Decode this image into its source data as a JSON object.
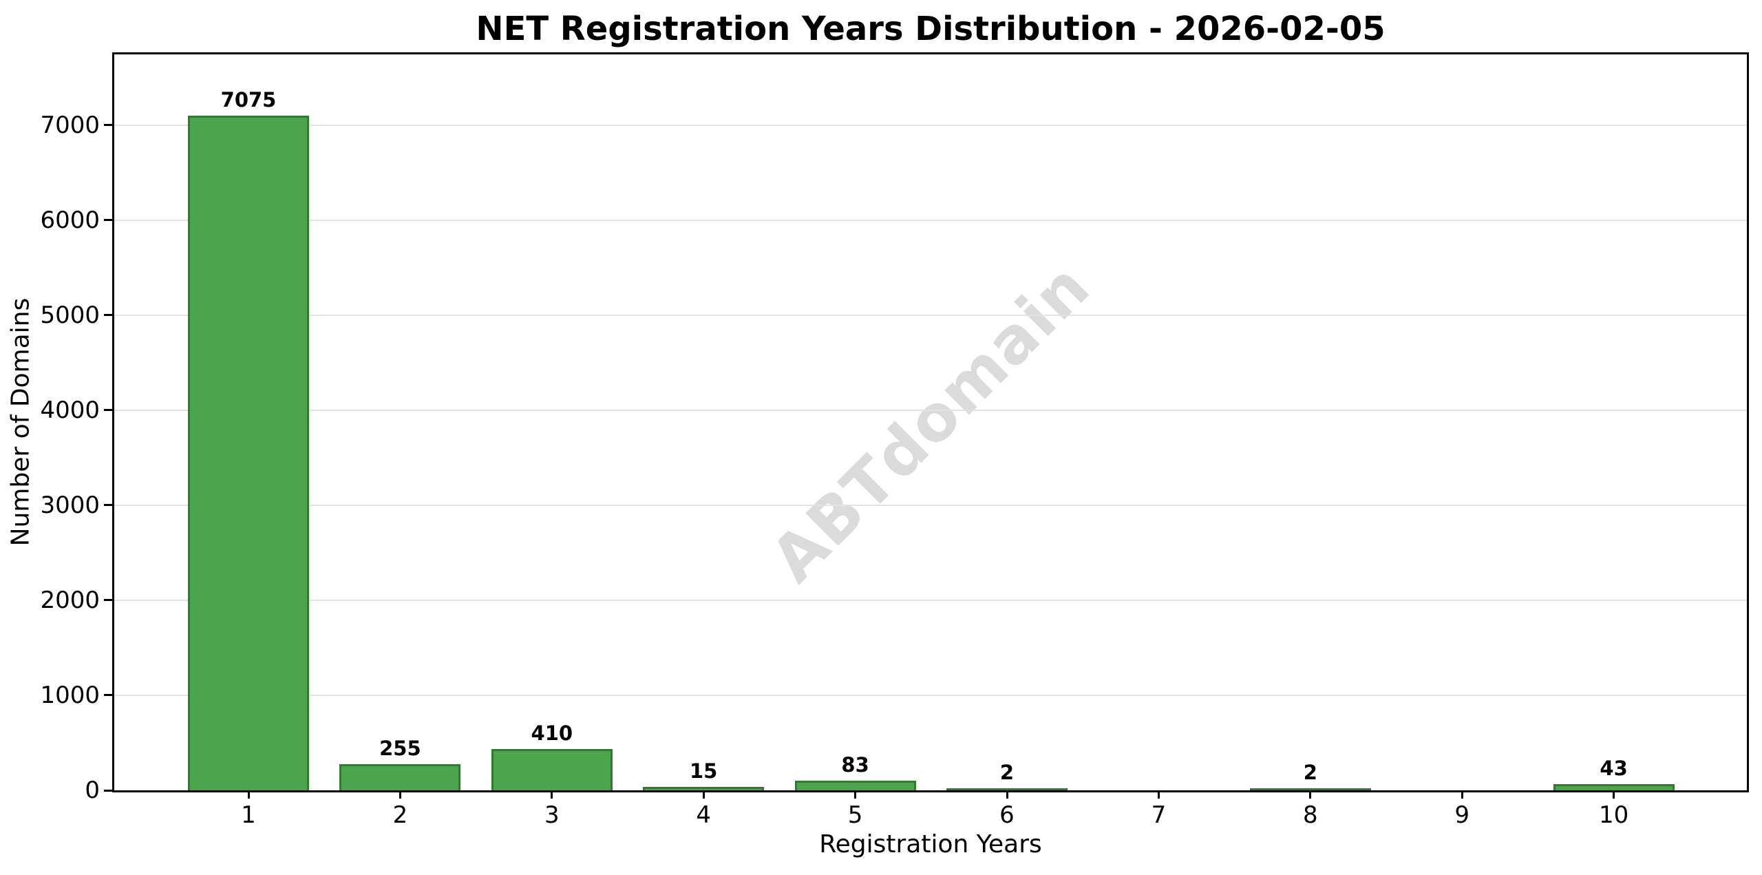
{
  "chart_data": {
    "type": "bar",
    "title": "NET Registration Years Distribution - 2026-02-05",
    "xlabel": "Registration Years",
    "ylabel": "Number of Domains",
    "categories": [
      "1",
      "2",
      "3",
      "4",
      "5",
      "6",
      "7",
      "8",
      "9",
      "10"
    ],
    "values": [
      7075,
      255,
      410,
      15,
      83,
      2,
      0,
      2,
      0,
      43
    ],
    "bar_labels": [
      "7075",
      "255",
      "410",
      "15",
      "83",
      "2",
      "",
      "2",
      "",
      "43"
    ],
    "yticks": [
      0,
      1000,
      2000,
      3000,
      4000,
      5000,
      6000,
      7000
    ],
    "ylim": [
      0,
      7782
    ],
    "grid": "horizontal-only",
    "legend_position": "none",
    "watermark": "ABTdomain",
    "colors": {
      "bar_fill": "#4CA54C",
      "bar_edge": "#2E7D2E",
      "gridline": "#E3E3E3",
      "watermark": "#DBDBDB",
      "text": "#000000",
      "background": "#FFFFFF"
    }
  }
}
